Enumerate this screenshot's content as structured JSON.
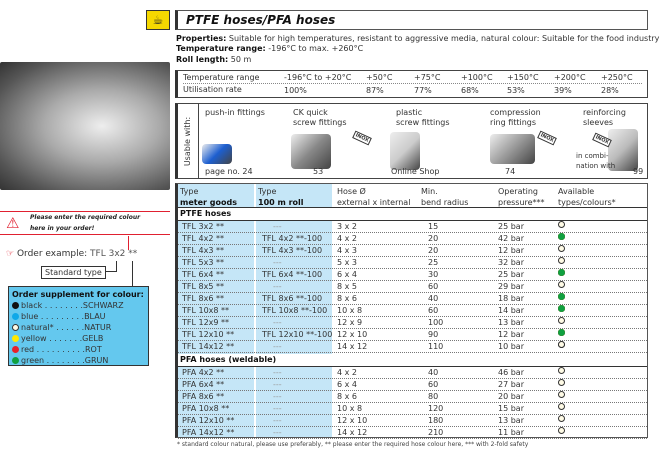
{
  "header": {
    "title": "PTFE hoses/PFA hoses",
    "icon": "hose-cup-icon"
  },
  "properties": {
    "props_label": "Properties:",
    "props_text": "Suitable for high temperatures, resistant to aggressive media, natural colour: Suitable for the food industry",
    "temp_label": "Temperature range:",
    "temp_text": "-196°C to max. +260°C",
    "roll_label": "Roll length:",
    "roll_text": "50 m"
  },
  "temp_table": {
    "row1_label": "Temperature range",
    "row2_label": "Utilisation rate",
    "temps": [
      "-196°C to +20°C",
      "+50°C",
      "+75°C",
      "+100°C",
      "+150°C",
      "+200°C",
      "+250°C"
    ],
    "rates": [
      "100%",
      "87%",
      "77%",
      "68%",
      "53%",
      "39%",
      "28%"
    ]
  },
  "usable": {
    "label": "Usable with:",
    "items": [
      {
        "name": "push-in fittings",
        "page": "page no.  24"
      },
      {
        "name": "CK quick\nscrew fittings",
        "page": "53",
        "badge": "INOX"
      },
      {
        "name": "plastic\nscrew fittings",
        "page": "Online Shop"
      },
      {
        "name": "compression\nring fittings",
        "page": "74",
        "badge": "INOX"
      },
      {
        "name": "reinforcing\nsleeves",
        "page": "99",
        "badge": "INOX",
        "note": "in combi-\nnation with"
      }
    ]
  },
  "table": {
    "headers": [
      {
        "l1": "Type",
        "l2": "meter goods"
      },
      {
        "l1": "Type",
        "l2": "100 m roll"
      },
      {
        "l1": "Hose Ø",
        "l2": "external x internal"
      },
      {
        "l1": "Min.",
        "l2": "bend radius"
      },
      {
        "l1": "Operating",
        "l2": "pressure***"
      },
      {
        "l1": "Available",
        "l2": "types/colours*"
      }
    ],
    "sections": [
      {
        "title": "PTFE hoses",
        "rows": [
          [
            "TFL 3x2 **",
            "---",
            "3 x 2",
            "15",
            "25 bar",
            "n"
          ],
          [
            "TFL 4x2 **",
            "TFL 4x2 **-100",
            "4 x 2",
            "20",
            "42 bar",
            "all"
          ],
          [
            "TFL 4x3 **",
            "TFL 4x3 **-100",
            "4 x 3",
            "20",
            "12 bar",
            "n"
          ],
          [
            "TFL 5x3 **",
            "---",
            "5 x 3",
            "25",
            "32 bar",
            "n"
          ],
          [
            "TFL 6x4 **",
            "TFL 6x4 **-100",
            "6 x 4",
            "30",
            "25 bar",
            "all"
          ],
          [
            "TFL 8x5 **",
            "---",
            "8 x 5",
            "60",
            "29 bar",
            "n"
          ],
          [
            "TFL 8x6 **",
            "TFL 8x6 **-100",
            "8 x 6",
            "40",
            "18 bar",
            "all"
          ],
          [
            "TFL 10x8 **",
            "TFL 10x8 **-100",
            "10 x 8",
            "60",
            "14 bar",
            "all"
          ],
          [
            "TFL 12x9 **",
            "---",
            "12 x 9",
            "100",
            "13 bar",
            "n"
          ],
          [
            "TFL 12x10 **",
            "TFL 12x10 **-100",
            "12 x 10",
            "90",
            "12 bar",
            "all"
          ],
          [
            "TFL 14x12 **",
            "---",
            "14 x 12",
            "110",
            "10 bar",
            "bn"
          ]
        ]
      },
      {
        "title": "PFA hoses (weldable)",
        "rows": [
          [
            "PFA 4x2 **",
            "---",
            "4 x 2",
            "40",
            "46 bar",
            "n"
          ],
          [
            "PFA 6x4 **",
            "---",
            "6 x 4",
            "60",
            "27 bar",
            "n"
          ],
          [
            "PFA 8x6 **",
            "---",
            "8 x 6",
            "80",
            "20 bar",
            "n"
          ],
          [
            "PFA 10x8 **",
            "---",
            "10 x 8",
            "120",
            "15 bar",
            "n"
          ],
          [
            "PFA 12x10 **",
            "---",
            "12 x 10",
            "180",
            "13 bar",
            "n"
          ],
          [
            "PFA 14x12 **",
            "---",
            "14 x 12",
            "210",
            "11 bar",
            "n"
          ]
        ]
      }
    ]
  },
  "colors": {
    "black": "#111111",
    "blue": "#10a8e8",
    "natural": "#fffbe6",
    "yellow": "#ffe800",
    "red": "#e8202a",
    "green": "#10a040"
  },
  "footnote": "* standard colour natural, please use preferably, ** please enter the required hose colour here, *** with 2-fold safety",
  "warning": {
    "line1": "Please enter the required colour",
    "line2": "here in your order!"
  },
  "order": {
    "label": "Order example:",
    "value": "TFL 3x2 **",
    "standard": "Standard type"
  },
  "supplement": {
    "title": "Order supplement for colour:",
    "items": [
      {
        "c": "black",
        "t": "black . . . . . . . .SCHWARZ"
      },
      {
        "c": "blue",
        "t": "blue . . . . . . . . .BLAU"
      },
      {
        "c": "natural",
        "t": "natural* . . . . . .NATUR"
      },
      {
        "c": "yellow",
        "t": "yellow . . . . . . .GELB"
      },
      {
        "c": "red",
        "t": "red . . . . . . . . . .ROT"
      },
      {
        "c": "green",
        "t": "green . . . . . . . .GRUN"
      }
    ]
  }
}
